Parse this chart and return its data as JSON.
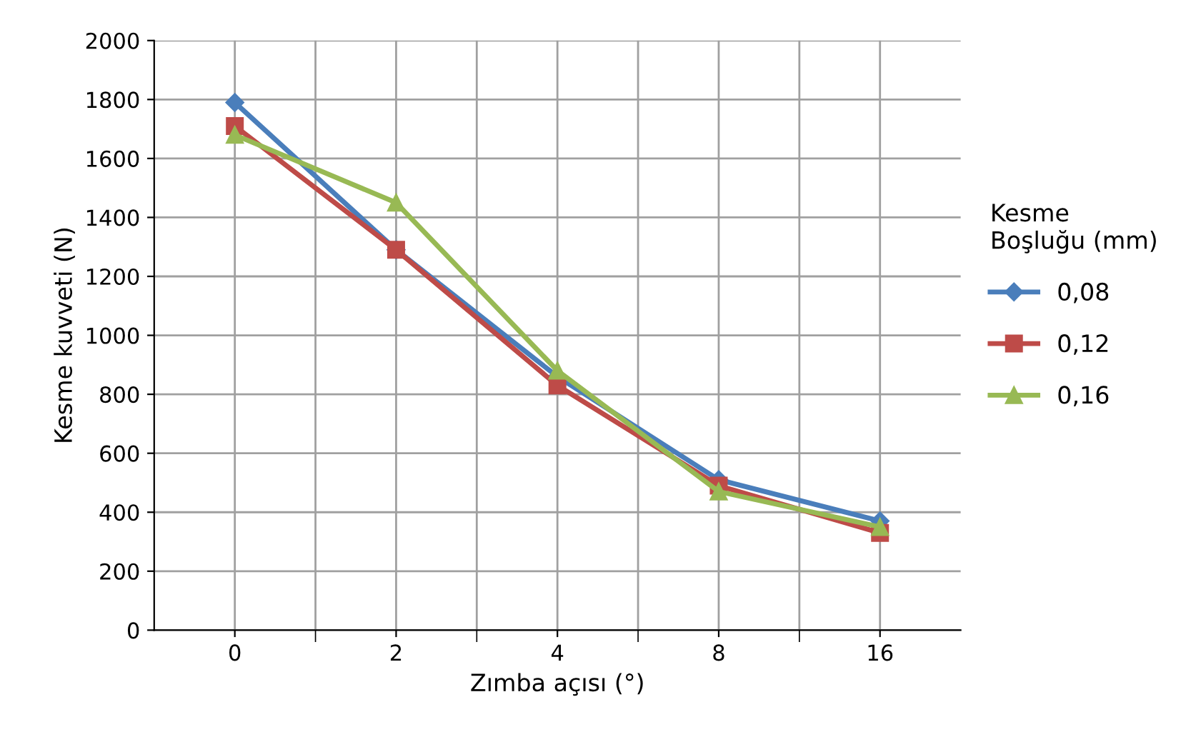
{
  "chart_data": {
    "type": "line",
    "xlabel": "Zımba açısı (°)",
    "ylabel": "Kesme kuvveti (N)",
    "legend_title": "Kesme\nBoşluğu (mm)",
    "categories": [
      "0",
      "2",
      "4",
      "8",
      "16"
    ],
    "series": [
      {
        "name": "0,08",
        "color": "#4a7ebb",
        "marker": "diamond",
        "values": [
          1790,
          1290,
          860,
          510,
          370
        ]
      },
      {
        "name": "0,12",
        "color": "#be4b48",
        "marker": "square",
        "values": [
          1710,
          1290,
          830,
          490,
          330
        ]
      },
      {
        "name": "0,16",
        "color": "#98b954",
        "marker": "triangle",
        "values": [
          1680,
          1450,
          880,
          470,
          350
        ]
      }
    ],
    "ylim": [
      0,
      2000
    ],
    "yticks": [
      0,
      200,
      400,
      600,
      800,
      1000,
      1200,
      1400,
      1600,
      1800,
      2000
    ],
    "grid": true,
    "legend": "right",
    "line_style": "solid"
  }
}
